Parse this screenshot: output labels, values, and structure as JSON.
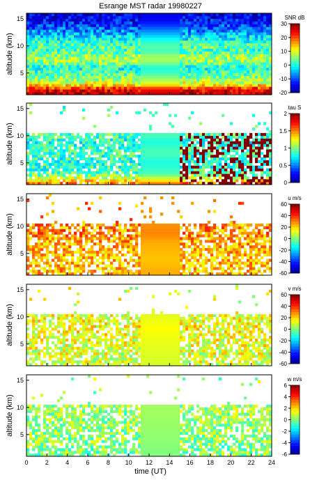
{
  "title": "Esrange MST radar 19980227",
  "x_axis": {
    "label": "time (UT)",
    "range": [
      0,
      24
    ],
    "ticks": [
      0,
      2,
      4,
      6,
      8,
      10,
      12,
      14,
      16,
      18,
      20,
      22,
      24
    ]
  },
  "y_axis": {
    "label": "altitude (km)",
    "range": [
      1,
      16
    ],
    "ticks": [
      5,
      10,
      15
    ]
  },
  "colormap": [
    "#00008f",
    "#0000ff",
    "#0080ff",
    "#00ffff",
    "#80ff80",
    "#ffff00",
    "#ff8000",
    "#ff0000",
    "#800000"
  ],
  "chart_data": [
    {
      "type": "heatmap",
      "quantity": "SNR",
      "colorbar_label": "SNR dB",
      "clim": [
        -20,
        30
      ],
      "colorbar_ticks": [
        -20,
        -10,
        0,
        10,
        20,
        30
      ],
      "profile": [
        {
          "alt": 1,
          "value": 27
        },
        {
          "alt": 2,
          "value": 24
        },
        {
          "alt": 3,
          "value": 10
        },
        {
          "alt": 4,
          "value": 6
        },
        {
          "alt": 5,
          "value": 2
        },
        {
          "alt": 6,
          "value": 0
        },
        {
          "alt": 7,
          "value": 6
        },
        {
          "alt": 8,
          "value": 7
        },
        {
          "alt": 9,
          "value": 2
        },
        {
          "alt": 10,
          "value": 3
        },
        {
          "alt": 11,
          "value": 0
        },
        {
          "alt": 12,
          "value": -4
        },
        {
          "alt": 13,
          "value": -8
        },
        {
          "alt": 14,
          "value": -12
        },
        {
          "alt": 15,
          "value": -14
        },
        {
          "alt": 16,
          "value": -16
        }
      ]
    },
    {
      "type": "heatmap",
      "quantity": "tau",
      "colorbar_label": "tau S",
      "clim": [
        0,
        2
      ],
      "colorbar_ticks": [
        0,
        0.5,
        1,
        1.5,
        2
      ],
      "profile": [
        {
          "alt": 1,
          "value": 1.6
        },
        {
          "alt": 2,
          "value": 1.2
        },
        {
          "alt": 3,
          "value": 0.9
        },
        {
          "alt": 5,
          "value": 0.8
        },
        {
          "alt": 7,
          "value": 0.9
        },
        {
          "alt": 9,
          "value": 0.8
        },
        {
          "alt": 10,
          "value": 0.9
        }
      ]
    },
    {
      "type": "heatmap",
      "quantity": "u",
      "colorbar_label": "u m/s",
      "clim": [
        -60,
        60
      ],
      "colorbar_ticks": [
        -60,
        -40,
        -20,
        0,
        20,
        40,
        60
      ],
      "profile": [
        {
          "alt": 1,
          "value": 25
        },
        {
          "alt": 4,
          "value": 22
        },
        {
          "alt": 7,
          "value": 25
        },
        {
          "alt": 9,
          "value": 30
        },
        {
          "alt": 10,
          "value": 28
        }
      ]
    },
    {
      "type": "heatmap",
      "quantity": "v",
      "colorbar_label": "v m/s",
      "clim": [
        -60,
        60
      ],
      "colorbar_ticks": [
        -60,
        -40,
        -20,
        0,
        20,
        40,
        60
      ],
      "profile": [
        {
          "alt": 1,
          "value": 10
        },
        {
          "alt": 5,
          "value": 12
        },
        {
          "alt": 8,
          "value": 15
        },
        {
          "alt": 10,
          "value": 12
        }
      ]
    },
    {
      "type": "heatmap",
      "quantity": "w",
      "colorbar_label": "w m/s",
      "clim": [
        -6,
        6
      ],
      "colorbar_ticks": [
        -6,
        -4,
        -2,
        0,
        2,
        4,
        6
      ],
      "profile": [
        {
          "alt": 1,
          "value": 0
        },
        {
          "alt": 5,
          "value": 0.2
        },
        {
          "alt": 10,
          "value": 0.4
        }
      ]
    }
  ]
}
